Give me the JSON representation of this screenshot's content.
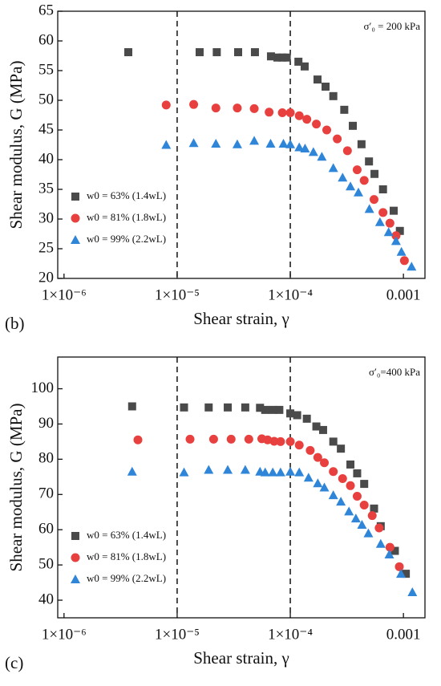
{
  "chart_data": [
    {
      "type": "scatter",
      "panel_label": "(b)",
      "annotation": "σ′₀ = 200 kPa",
      "xlabel": "Shear strain, γ",
      "ylabel": "Shear modulus, G (MPa)",
      "log_x": true,
      "xlim": [
        8.8e-07,
        0.00155
      ],
      "xticks": [
        {
          "value": 1e-06,
          "label": "1×10⁻⁶"
        },
        {
          "value": 1e-05,
          "label": "1×10⁻⁵"
        },
        {
          "value": 0.0001,
          "label": "1×10⁻⁴"
        },
        0.001
      ],
      "ylim": [
        20,
        65
      ],
      "yticks": [
        20,
        25,
        30,
        35,
        40,
        45,
        50,
        55,
        60,
        65
      ],
      "vlines": [
        1e-05,
        0.0001
      ],
      "legend": "lower left",
      "series": [
        {
          "name": "w0 = 63% (1.4wL)",
          "color": "#4a4a4a",
          "marker": "square",
          "x": [
            3.7e-06,
            1.58e-05,
            2.24e-05,
            3.46e-05,
            4.87e-05,
            6.75e-05,
            7.7e-05,
            8.5e-05,
            9.3e-05,
            0.000118,
            0.000134,
            0.000174,
            0.000205,
            0.00024,
            0.0003,
            0.000357,
            0.000426,
            0.000496,
            0.000555,
            0.00066,
            0.00082,
            0.00093
          ],
          "values": [
            58.1,
            58.1,
            58.1,
            58.1,
            58.1,
            57.4,
            57.2,
            57.2,
            57.2,
            56.5,
            55.7,
            53.5,
            52.3,
            50.7,
            48.4,
            45.7,
            42.6,
            39.7,
            37.6,
            35.0,
            31.4,
            28.0
          ]
        },
        {
          "name": "w0 = 81% (1.8wL)",
          "color": "#e8403f",
          "marker": "circle",
          "x": [
            8e-06,
            1.4e-05,
            2.2e-05,
            3.4e-05,
            4.8e-05,
            6.5e-05,
            8.5e-05,
            0.0001,
            0.00012,
            0.00014,
            0.00017,
            0.00021,
            0.00026,
            0.00032,
            0.00039,
            0.00045,
            0.00055,
            0.00066,
            0.00076,
            0.00086,
            0.00102
          ],
          "values": [
            49.2,
            49.3,
            48.7,
            48.7,
            48.6,
            48.0,
            47.9,
            47.9,
            47.4,
            46.8,
            46.0,
            45.0,
            43.5,
            41.5,
            38.3,
            36.5,
            33.3,
            31.1,
            29.3,
            27.2,
            23.0
          ]
        },
        {
          "name": "w0 = 99% (2.2wL)",
          "color": "#2f86d8",
          "marker": "triangle",
          "x": [
            8e-06,
            1.4e-05,
            2.2e-05,
            3.4e-05,
            4.8e-05,
            6.7e-05,
            8.7e-05,
            0.0001,
            0.00012,
            0.000135,
            0.00016,
            0.00019,
            0.00024,
            0.00029,
            0.00034,
            0.0004,
            0.0005,
            0.00062,
            0.00074,
            0.00086,
            0.00096,
            0.00118
          ],
          "values": [
            42.5,
            42.8,
            42.7,
            42.6,
            43.2,
            42.7,
            42.7,
            42.6,
            42.1,
            41.9,
            41.3,
            40.5,
            38.6,
            37.0,
            35.5,
            34.5,
            31.7,
            29.5,
            27.8,
            26.3,
            24.5,
            22.0
          ]
        }
      ]
    },
    {
      "type": "scatter",
      "panel_label": "(c)",
      "annotation": "σ′₀=400 kPa",
      "xlabel": "Shear strain, γ",
      "ylabel": "Shear modulus, G (MPa)",
      "log_x": true,
      "xlim": [
        8.8e-07,
        0.00155
      ],
      "xticks": [
        {
          "value": 1e-06,
          "label": "1×10⁻⁶"
        },
        {
          "value": 1e-05,
          "label": "1×10⁻⁵"
        },
        {
          "value": 0.0001,
          "label": "1×10⁻⁴"
        },
        0.001
      ],
      "ylim": [
        35,
        109
      ],
      "yticks": [
        40,
        50,
        60,
        70,
        80,
        90,
        100
      ],
      "vlines": [
        1e-05,
        0.0001
      ],
      "legend": "lower left",
      "series": [
        {
          "name": "w0 = 63% (1.4wL)",
          "color": "#4a4a4a",
          "marker": "square",
          "x": [
            4e-06,
            1.15e-05,
            1.9e-05,
            2.8e-05,
            4e-05,
            5.4e-05,
            6e-05,
            7e-05,
            8e-05,
            0.0001,
            0.000115,
            0.00014,
            0.00017,
            0.000195,
            0.00024,
            0.00028,
            0.00034,
            0.00039,
            0.00045,
            0.00055,
            0.00063,
            0.00084,
            0.00105
          ],
          "values": [
            95,
            94.7,
            94.7,
            94.7,
            94.7,
            94.6,
            94,
            94,
            94,
            93,
            92.5,
            91.5,
            89.3,
            88.3,
            85,
            83,
            78.5,
            76,
            73,
            66,
            61,
            54,
            47.5
          ]
        },
        {
          "name": "w0 = 81% (1.8wL)",
          "color": "#e8403f",
          "marker": "circle",
          "x": [
            4.5e-06,
            1.3e-05,
            2.1e-05,
            3e-05,
            4.3e-05,
            5.6e-05,
            6.3e-05,
            7.2e-05,
            8.2e-05,
            0.0001,
            0.00012,
            0.00015,
            0.000175,
            0.0002,
            0.00024,
            0.00029,
            0.00034,
            0.00039,
            0.00045,
            0.00053,
            0.00061,
            0.00076,
            0.00092
          ],
          "values": [
            85.5,
            85.7,
            85.7,
            85.7,
            85.7,
            85.8,
            85.5,
            85.1,
            85.0,
            85.0,
            84,
            82.5,
            80.5,
            79,
            76.5,
            74.5,
            72.5,
            69.5,
            67,
            64,
            60.5,
            55,
            49.5
          ]
        },
        {
          "name": "w0 = 99% (2.2wL)",
          "color": "#2f86d8",
          "marker": "triangle",
          "x": [
            4e-06,
            1.15e-05,
            1.9e-05,
            2.8e-05,
            4e-05,
            5.4e-05,
            6e-05,
            7e-05,
            8.2e-05,
            0.0001,
            0.00012,
            0.000145,
            0.000175,
            0.0002,
            0.00024,
            0.00028,
            0.00033,
            0.00038,
            0.00043,
            0.00049,
            0.00063,
            0.00075,
            0.00095,
            0.0012
          ],
          "values": [
            76.5,
            76.3,
            77,
            77,
            77,
            76.5,
            76.3,
            76.3,
            76.3,
            76.5,
            76.3,
            74.8,
            73.2,
            72,
            69.8,
            68,
            65.2,
            63.2,
            61.4,
            59,
            56,
            53,
            47.5,
            42.3
          ]
        }
      ]
    }
  ]
}
